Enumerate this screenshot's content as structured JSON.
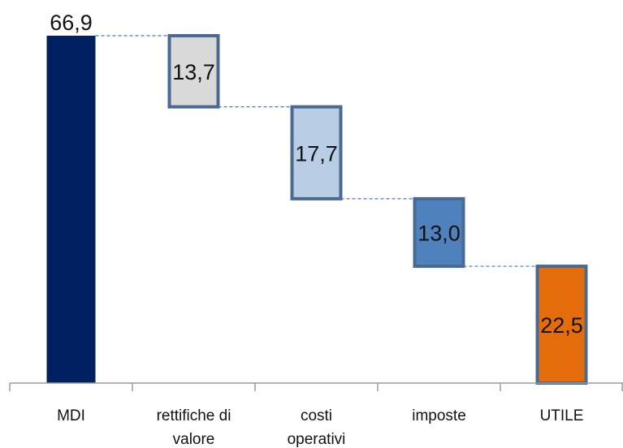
{
  "chart_data": {
    "type": "bar",
    "subtype": "waterfall",
    "title": "",
    "xlabel": "",
    "ylabel": "",
    "ylim": [
      0,
      66.9
    ],
    "grid": false,
    "legend": "none",
    "categories": [
      [
        "MDI"
      ],
      [
        "rettifiche di",
        "valore"
      ],
      [
        "costi",
        "operativi"
      ],
      [
        "imposte"
      ],
      [
        "UTILE"
      ]
    ],
    "values": [
      66.9,
      13.7,
      17.7,
      13.0,
      22.5
    ],
    "labels": [
      "66,9",
      "13,7",
      "17,7",
      "13,0",
      "22,5"
    ],
    "steps": [
      "total",
      "decrease",
      "decrease",
      "decrease",
      "total"
    ],
    "colors": {
      "fills": [
        "#002060",
        "#d9d9d9",
        "#b9cde5",
        "#4f81bd",
        "#e46c0a"
      ],
      "border": "#4a6a94",
      "connector": "#4a78b8",
      "axis": "#9a9a9a"
    }
  }
}
